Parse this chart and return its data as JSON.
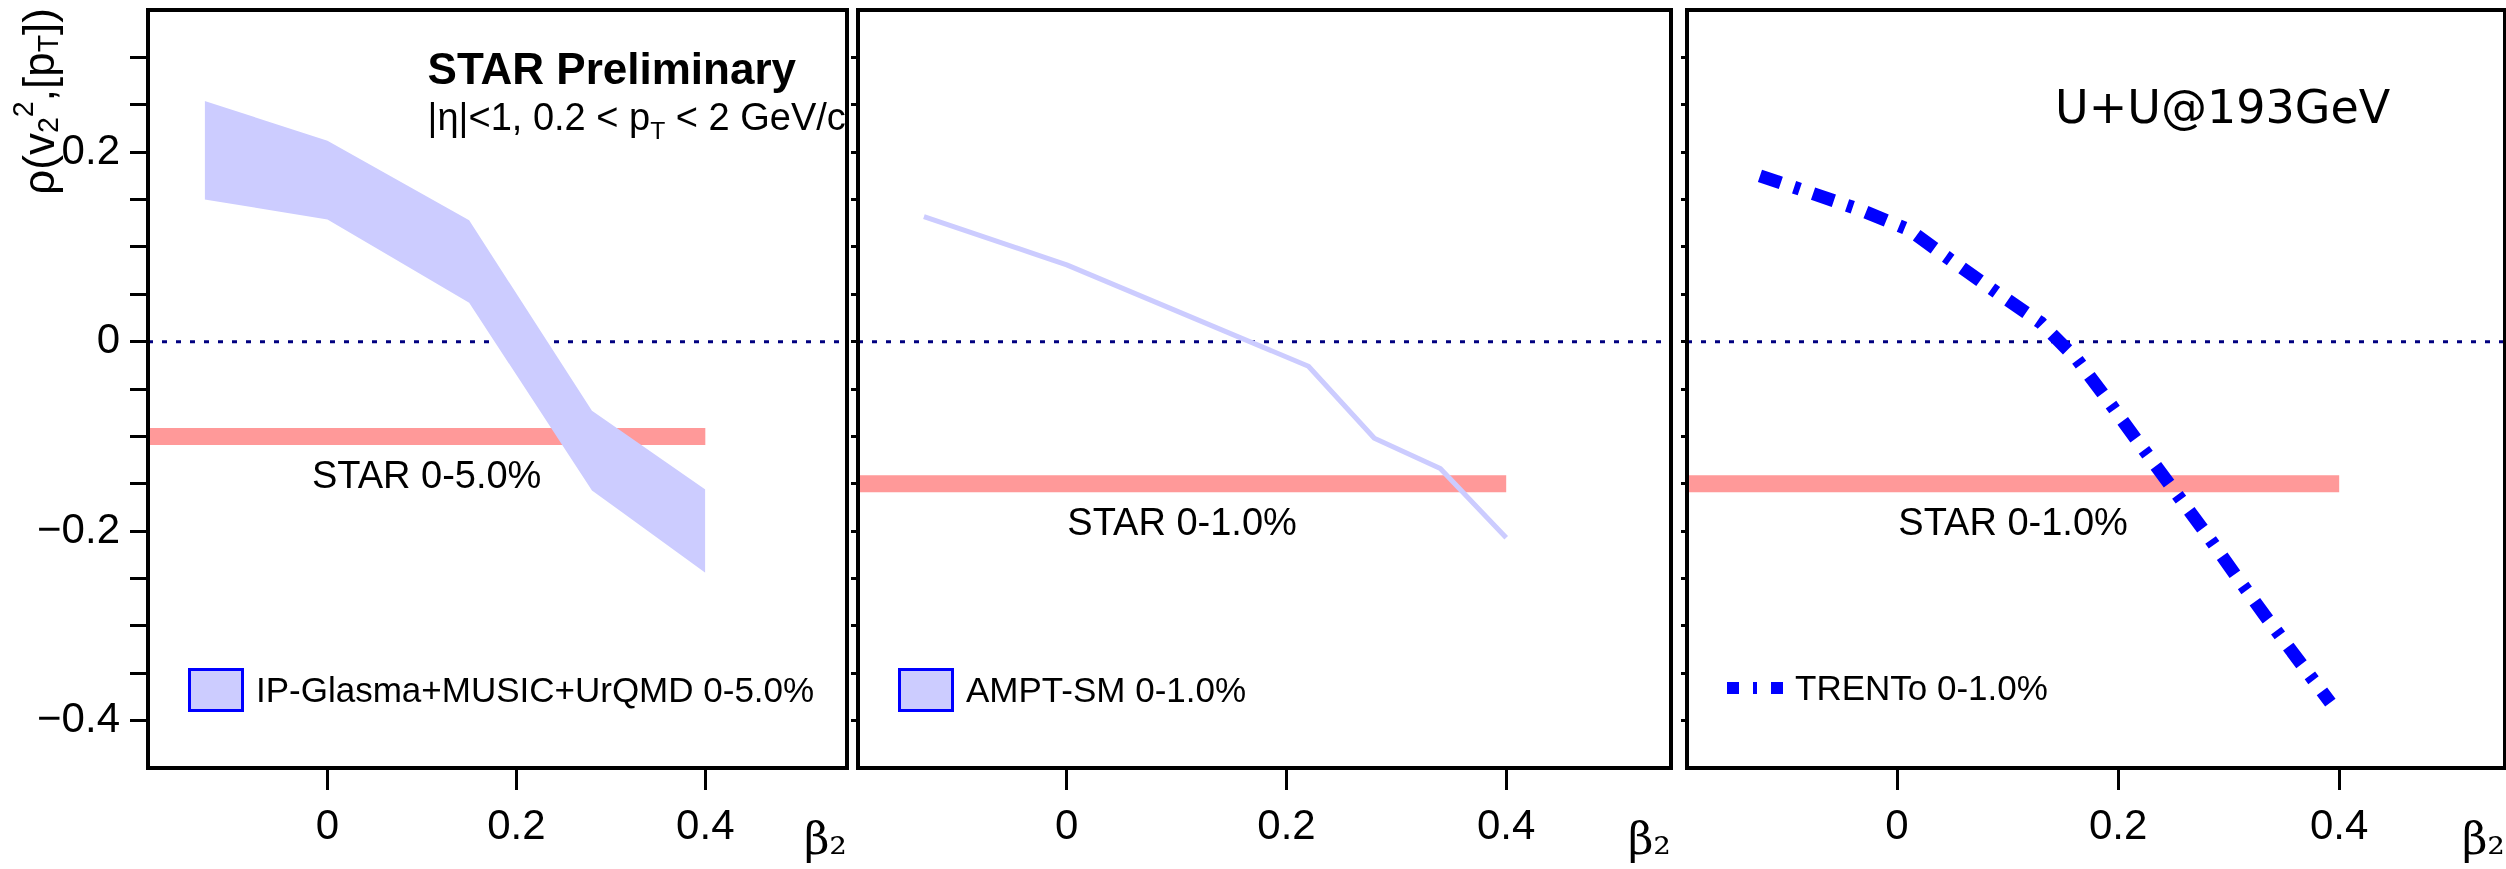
{
  "chart_data": [
    {
      "type": "line",
      "xlabel": "β₂",
      "ylabel": "ρ(v$_{2}$$^{2}$,[p$_{T}$])",
      "annotations": [
        "STAR Preliminary",
        "|η|<1, 0.2 < p$_{T}$ < 2 GeV/c"
      ],
      "xlim": [
        -0.19,
        0.55
      ],
      "ylim": [
        -0.45,
        0.35
      ],
      "xticks": [
        0,
        0.2,
        0.4
      ],
      "yticks": [
        {
          "value": -0.4,
          "label": "−0.4"
        },
        {
          "value": -0.35,
          "label": null
        },
        {
          "value": -0.3,
          "label": null
        },
        {
          "value": -0.25,
          "label": null
        },
        {
          "value": -0.2,
          "label": "−0.2"
        },
        {
          "value": -0.15,
          "label": null
        },
        {
          "value": -0.1,
          "label": null
        },
        {
          "value": -0.05,
          "label": null
        },
        0,
        {
          "value": 0.05,
          "label": null
        },
        {
          "value": 0.1,
          "label": null
        },
        {
          "value": 0.15,
          "label": null
        },
        0.2,
        {
          "value": 0.25,
          "label": null
        },
        {
          "value": 0.3,
          "label": null
        }
      ],
      "ref_lines": [
        {
          "axis": "y",
          "value": 0,
          "color": "#000080",
          "line_style": "dotted"
        }
      ],
      "legend": "bottom left",
      "series": [
        {
          "name": "IP-Glasma+MUSIC+UrQMD 0-5.0%",
          "color": "#ccccff",
          "x": [
            -0.13,
            0,
            0.15,
            0.28,
            0.4
          ],
          "values": [
            null,
            null,
            null,
            null,
            null
          ],
          "lower": [
            0.15,
            0.129,
            0.041,
            -0.157,
            -0.244
          ],
          "upper": [
            0.254,
            0.212,
            0.128,
            -0.073,
            -0.156
          ]
        },
        {
          "name": "STAR 0-5.0%",
          "color": "#ff9999",
          "line_style": "solid",
          "x": [
            -0.19,
            0.4
          ],
          "values": [
            -0.1,
            -0.1
          ]
        }
      ]
    },
    {
      "type": "line",
      "xlabel": "β₂",
      "tick_labels": "x",
      "xlim": [
        -0.19,
        0.55
      ],
      "ylim": [
        -0.45,
        0.35
      ],
      "xticks": [
        0,
        0.2,
        0.4
      ],
      "yticks": [
        {
          "value": -0.4,
          "label": null
        },
        {
          "value": -0.35,
          "label": null
        },
        {
          "value": -0.3,
          "label": null
        },
        {
          "value": -0.25,
          "label": null
        },
        {
          "value": -0.2,
          "label": null
        },
        {
          "value": -0.15,
          "label": null
        },
        {
          "value": -0.1,
          "label": null
        },
        {
          "value": -0.05,
          "label": null
        },
        {
          "value": 0,
          "label": null
        },
        {
          "value": 0.05,
          "label": null
        },
        {
          "value": 0.1,
          "label": null
        },
        {
          "value": 0.15,
          "label": null
        },
        {
          "value": 0.2,
          "label": null
        },
        {
          "value": 0.25,
          "label": null
        },
        {
          "value": 0.3,
          "label": null
        }
      ],
      "ref_lines": [
        {
          "axis": "y",
          "value": 0,
          "color": "#000080",
          "line_style": "dotted"
        }
      ],
      "legend": "bottom left",
      "series": [
        {
          "name": "AMPT-SM 0-1.0%",
          "color": "#ccccff",
          "line_style": "solid",
          "x": [
            -0.13,
            0,
            0.22,
            0.28,
            0.34,
            0.4
          ],
          "values": [
            0.132,
            0.081,
            -0.026,
            -0.102,
            -0.134,
            -0.207
          ]
        },
        {
          "name": "STAR 0-1.0%",
          "color": "#ff9999",
          "line_style": "solid",
          "x": [
            -0.19,
            0.4
          ],
          "values": [
            -0.15,
            -0.15
          ]
        }
      ]
    },
    {
      "type": "line",
      "xlabel": "β₂",
      "tick_labels": "x",
      "annotations": [
        "U+U@193GeV"
      ],
      "xlim": [
        -0.19,
        0.55
      ],
      "ylim": [
        -0.45,
        0.35
      ],
      "xticks": [
        0,
        0.2,
        0.4
      ],
      "yticks": [
        {
          "value": -0.4,
          "label": null
        },
        {
          "value": -0.35,
          "label": null
        },
        {
          "value": -0.3,
          "label": null
        },
        {
          "value": -0.25,
          "label": null
        },
        {
          "value": -0.2,
          "label": null
        },
        {
          "value": -0.15,
          "label": null
        },
        {
          "value": -0.1,
          "label": null
        },
        {
          "value": -0.05,
          "label": null
        },
        {
          "value": 0,
          "label": null
        },
        {
          "value": 0.05,
          "label": null
        },
        {
          "value": 0.1,
          "label": null
        },
        {
          "value": 0.15,
          "label": null
        },
        {
          "value": 0.2,
          "label": null
        },
        {
          "value": 0.25,
          "label": null
        },
        {
          "value": 0.3,
          "label": null
        }
      ],
      "ref_lines": [
        {
          "axis": "y",
          "value": 0,
          "color": "#000080",
          "line_style": "dotted"
        }
      ],
      "legend": "bottom left",
      "series": [
        {
          "name": "TRENTo 0-1.0%",
          "color": "#0000ff",
          "line_style": "dashed",
          "x": [
            -0.124,
            -0.078,
            -0.033,
            0.011,
            0.05,
            0.09,
            0.13,
            0.163,
            0.192,
            0.22,
            0.278,
            0.306,
            0.334,
            0.363,
            0.392
          ],
          "values": [
            0.175,
            0.157,
            0.139,
            0.118,
            0.085,
            0.052,
            0.02,
            -0.019,
            -0.064,
            -0.109,
            -0.2,
            -0.246,
            -0.291,
            -0.336,
            -0.381
          ]
        },
        {
          "name": "STAR 0-1.0%",
          "color": "#ff9999",
          "line_style": "solid",
          "x": [
            -0.19,
            0.4
          ],
          "values": [
            -0.15,
            -0.15
          ]
        }
      ]
    }
  ]
}
